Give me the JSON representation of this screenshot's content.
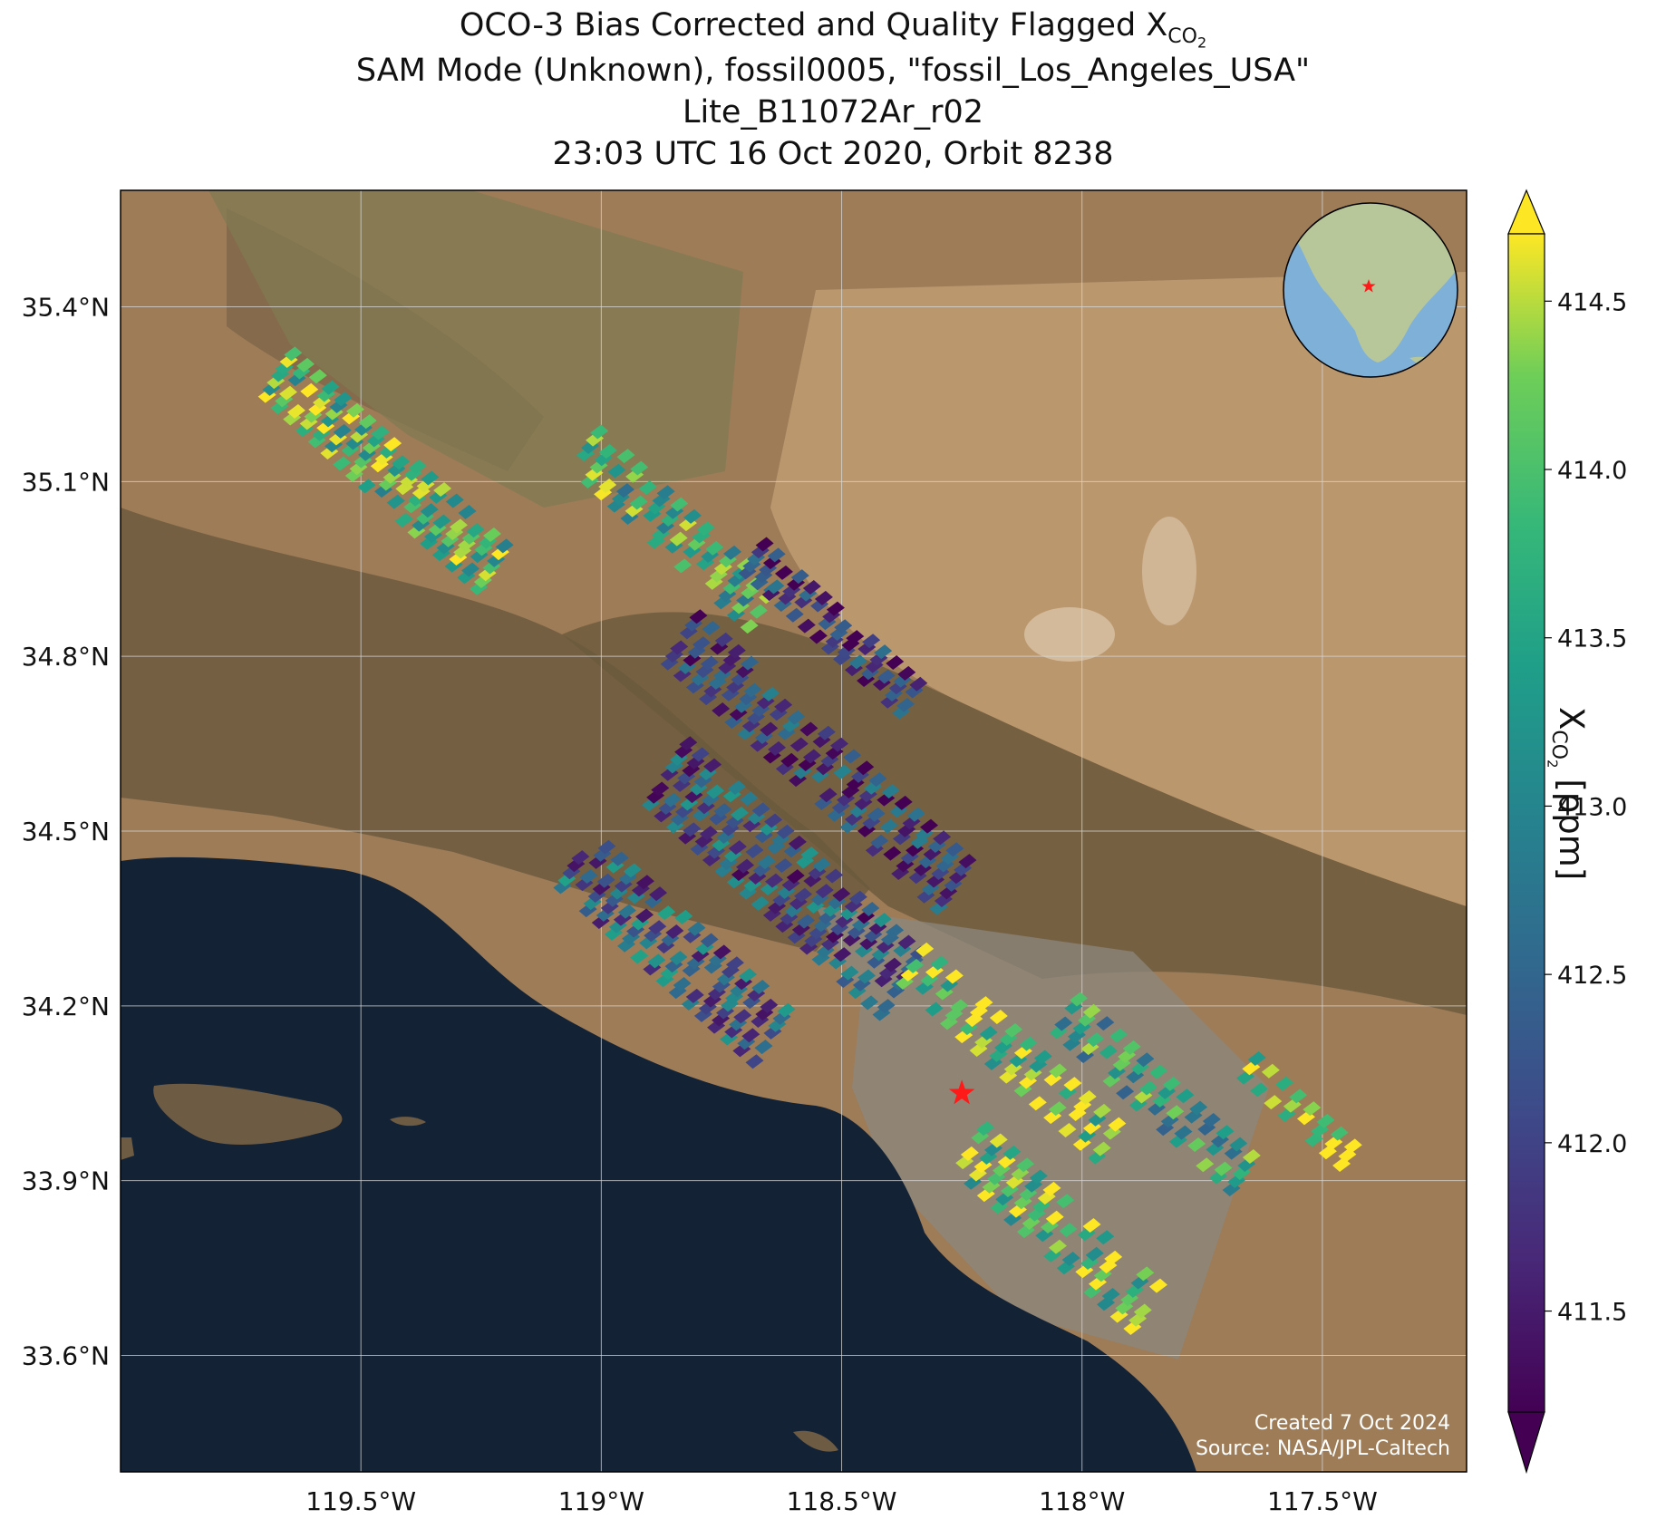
{
  "title": {
    "line1_prefix": "OCO-3 Bias Corrected and Quality Flagged X",
    "line1_sub": "CO",
    "line1_sub2": "2",
    "line2": "SAM Mode (Unknown), fossil0005, \"fossil_Los_Angeles_USA\"",
    "line3": "Lite_B11072Ar_r02",
    "line4": "23:03 UTC 16 Oct 2020, Orbit 8238"
  },
  "axes": {
    "lat_ticks": [
      "35.4°N",
      "35.1°N",
      "34.8°N",
      "34.5°N",
      "34.2°N",
      "33.9°N",
      "33.6°N"
    ],
    "lon_ticks": [
      "119.5°W",
      "119°W",
      "118.5°W",
      "118°W",
      "117.5°W"
    ],
    "lat_range": [
      33.4,
      35.6
    ],
    "lon_range": [
      -120.0,
      -117.2
    ],
    "grid": true
  },
  "colorbar": {
    "label_prefix": "X",
    "label_sub": "CO",
    "label_sub2": "2",
    "label_suffix": " [ppm]",
    "ticks": [
      "414.5",
      "414.0",
      "413.5",
      "413.0",
      "412.5",
      "412.0",
      "411.5"
    ],
    "tick_values": [
      414.5,
      414.0,
      413.5,
      413.0,
      412.5,
      412.0,
      411.5
    ],
    "range": [
      411.2,
      414.7
    ],
    "colormap": "viridis",
    "extend": "both"
  },
  "target": {
    "name": "fossil_Los_Angeles_USA",
    "lat": 34.05,
    "lon": -118.25,
    "marker": "red-star"
  },
  "inset": {
    "type": "globe",
    "marker": "red-star"
  },
  "credits": {
    "line1": "Created 7 Oct 2024",
    "line2": "Source: NASA/JPL-Caltech"
  },
  "colors": {
    "ocean": "#132235",
    "land": "#9a7a55",
    "star": "#ff1a1a"
  }
}
